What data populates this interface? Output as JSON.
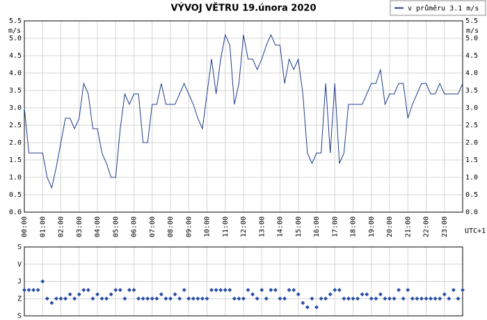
{
  "chart_data": [
    {
      "type": "line",
      "title": "VÝVOJ VĚTRU  19.února 2020",
      "y_label": "m/s",
      "x_note": "UTC+1",
      "grid": true,
      "y_tick_labels_right": true,
      "legend": "top-right",
      "x": [
        0,
        0.25,
        0.5,
        0.75,
        1,
        1.25,
        1.5,
        1.75,
        2,
        2.25,
        2.5,
        2.75,
        3,
        3.25,
        3.5,
        3.75,
        4,
        4.25,
        4.5,
        4.75,
        5,
        5.25,
        5.5,
        5.75,
        6,
        6.25,
        6.5,
        6.75,
        7,
        7.25,
        7.5,
        7.75,
        8,
        8.25,
        8.5,
        8.75,
        9,
        9.25,
        9.5,
        9.75,
        10,
        10.25,
        10.5,
        10.75,
        11,
        11.25,
        11.5,
        11.75,
        12,
        12.25,
        12.5,
        12.75,
        13,
        13.25,
        13.5,
        13.75,
        14,
        14.25,
        14.5,
        14.75,
        15,
        15.25,
        15.5,
        15.75,
        16,
        16.25,
        16.5,
        16.75,
        17,
        17.25,
        17.5,
        17.75,
        18,
        18.25,
        18.5,
        18.75,
        19,
        19.25,
        19.5,
        19.75,
        20,
        20.25,
        20.5,
        20.75,
        21,
        21.25,
        21.5,
        21.75,
        22,
        22.25,
        22.5,
        22.75,
        23,
        23.25,
        23.5,
        23.75,
        24
      ],
      "series": [
        {
          "name": "v průměru 3.1 m/s",
          "color": "#1f3a8a",
          "values": [
            3.0,
            1.7,
            1.7,
            1.7,
            1.7,
            1.0,
            0.7,
            1.3,
            2.0,
            2.7,
            2.7,
            2.4,
            2.7,
            3.7,
            3.4,
            2.4,
            2.4,
            1.7,
            1.4,
            1.0,
            1.0,
            2.4,
            3.4,
            3.1,
            3.4,
            3.4,
            2.0,
            2.0,
            3.1,
            3.1,
            3.7,
            3.1,
            3.1,
            3.1,
            3.4,
            3.7,
            3.4,
            3.1,
            2.7,
            2.4,
            3.4,
            4.4,
            3.4,
            4.4,
            5.1,
            4.8,
            3.1,
            3.7,
            5.1,
            4.4,
            4.4,
            4.1,
            4.4,
            4.8,
            5.1,
            4.8,
            4.8,
            3.7,
            4.4,
            4.1,
            4.4,
            3.4,
            1.7,
            1.4,
            1.7,
            1.7,
            3.7,
            1.7,
            3.7,
            1.4,
            1.7,
            3.1,
            3.1,
            3.1,
            3.1,
            3.4,
            3.7,
            3.7,
            4.1,
            3.1,
            3.4,
            3.4,
            3.7,
            3.7,
            2.7,
            3.1,
            3.4,
            3.7,
            3.7,
            3.4,
            3.4,
            3.7,
            3.4,
            3.4,
            3.4,
            3.4,
            3.7
          ]
        }
      ],
      "xlim": [
        0,
        24
      ],
      "xticks": [
        {
          "value": 0,
          "label": "00:00"
        },
        {
          "value": 1,
          "label": "01:00"
        },
        {
          "value": 2,
          "label": "02:00"
        },
        {
          "value": 3,
          "label": "03:00"
        },
        {
          "value": 4,
          "label": "04:00"
        },
        {
          "value": 5,
          "label": "05:00"
        },
        {
          "value": 6,
          "label": "06:00"
        },
        {
          "value": 7,
          "label": "07:00"
        },
        {
          "value": 8,
          "label": "08:00"
        },
        {
          "value": 9,
          "label": "09:00"
        },
        {
          "value": 10,
          "label": "10:00"
        },
        {
          "value": 11,
          "label": "11:00"
        },
        {
          "value": 12,
          "label": "12:00"
        },
        {
          "value": 13,
          "label": "13:00"
        },
        {
          "value": 14,
          "label": "14:00"
        },
        {
          "value": 15,
          "label": "15:00"
        },
        {
          "value": 16,
          "label": "16:00"
        },
        {
          "value": 17,
          "label": "17:00"
        },
        {
          "value": 18,
          "label": "18:00"
        },
        {
          "value": 19,
          "label": "19:00"
        },
        {
          "value": 20,
          "label": "20:00"
        },
        {
          "value": 21,
          "label": "21:00"
        },
        {
          "value": 22,
          "label": "22:00"
        },
        {
          "value": 23,
          "label": "23:00"
        }
      ],
      "ylim": [
        0,
        5.5
      ],
      "yticks": [
        {
          "value": 0,
          "label": "0.0"
        },
        0.5,
        {
          "value": 1,
          "label": "1.0"
        },
        1.5,
        {
          "value": 2,
          "label": "2.0"
        },
        2.5,
        {
          "value": 3,
          "label": "3.0"
        },
        3.5,
        {
          "value": 4,
          "label": "4.0"
        },
        4.5,
        {
          "value": 5,
          "label": "5.0"
        },
        5.5
      ]
    },
    {
      "type": "scatter",
      "grid": true,
      "x": [
        0,
        0.25,
        0.5,
        0.75,
        1,
        1.25,
        1.5,
        1.75,
        2,
        2.25,
        2.5,
        2.75,
        3,
        3.25,
        3.5,
        3.75,
        4,
        4.25,
        4.5,
        4.75,
        5,
        5.25,
        5.5,
        5.75,
        6,
        6.25,
        6.5,
        6.75,
        7,
        7.25,
        7.5,
        7.75,
        8,
        8.25,
        8.5,
        8.75,
        9,
        9.25,
        9.5,
        9.75,
        10,
        10.25,
        10.5,
        10.75,
        11,
        11.25,
        11.5,
        11.75,
        12,
        12.25,
        12.5,
        12.75,
        13,
        13.25,
        13.5,
        13.75,
        14,
        14.25,
        14.5,
        14.75,
        15,
        15.25,
        15.5,
        15.75,
        16,
        16.25,
        16.5,
        16.75,
        17,
        17.25,
        17.5,
        17.75,
        18,
        18.25,
        18.5,
        18.75,
        19,
        19.25,
        19.5,
        19.75,
        20,
        20.25,
        20.5,
        20.75,
        21,
        21.25,
        21.5,
        21.75,
        22,
        22.25,
        22.5,
        22.75,
        23,
        23.25,
        23.5,
        23.75,
        24
      ],
      "series": [
        {
          "color": "#2a4fa8",
          "values": [
            225,
            225,
            225,
            225,
            180,
            270,
            292.5,
            270,
            270,
            270,
            247.5,
            270,
            247.5,
            225,
            225,
            270,
            247.5,
            270,
            270,
            247.5,
            225,
            225,
            270,
            225,
            225,
            270,
            270,
            270,
            270,
            270,
            247.5,
            270,
            270,
            247.5,
            270,
            225,
            270,
            270,
            270,
            270,
            270,
            225,
            225,
            225,
            225,
            225,
            270,
            270,
            270,
            225,
            247.5,
            270,
            225,
            270,
            225,
            225,
            270,
            270,
            225,
            225,
            247.5,
            292.5,
            315,
            270,
            315,
            270,
            270,
            247.5,
            225,
            225,
            270,
            270,
            270,
            270,
            247.5,
            247.5,
            270,
            270,
            247.5,
            270,
            270,
            270,
            225,
            270,
            225,
            270,
            270,
            270,
            270,
            270,
            270,
            270,
            247.5,
            270,
            225,
            270,
            225
          ]
        }
      ],
      "xlim": [
        0,
        24
      ],
      "xticks": [
        0,
        1,
        2,
        3,
        4,
        5,
        6,
        7,
        8,
        9,
        10,
        11,
        12,
        13,
        14,
        15,
        16,
        17,
        18,
        19,
        20,
        21,
        22,
        23
      ],
      "ylim": [
        360,
        0
      ],
      "yticks": [
        {
          "value": 0,
          "label": "S"
        },
        {
          "value": 90,
          "label": "V"
        },
        {
          "value": 180,
          "label": "J"
        },
        {
          "value": 270,
          "label": "Z"
        },
        {
          "value": 360,
          "label": "S"
        }
      ]
    }
  ]
}
